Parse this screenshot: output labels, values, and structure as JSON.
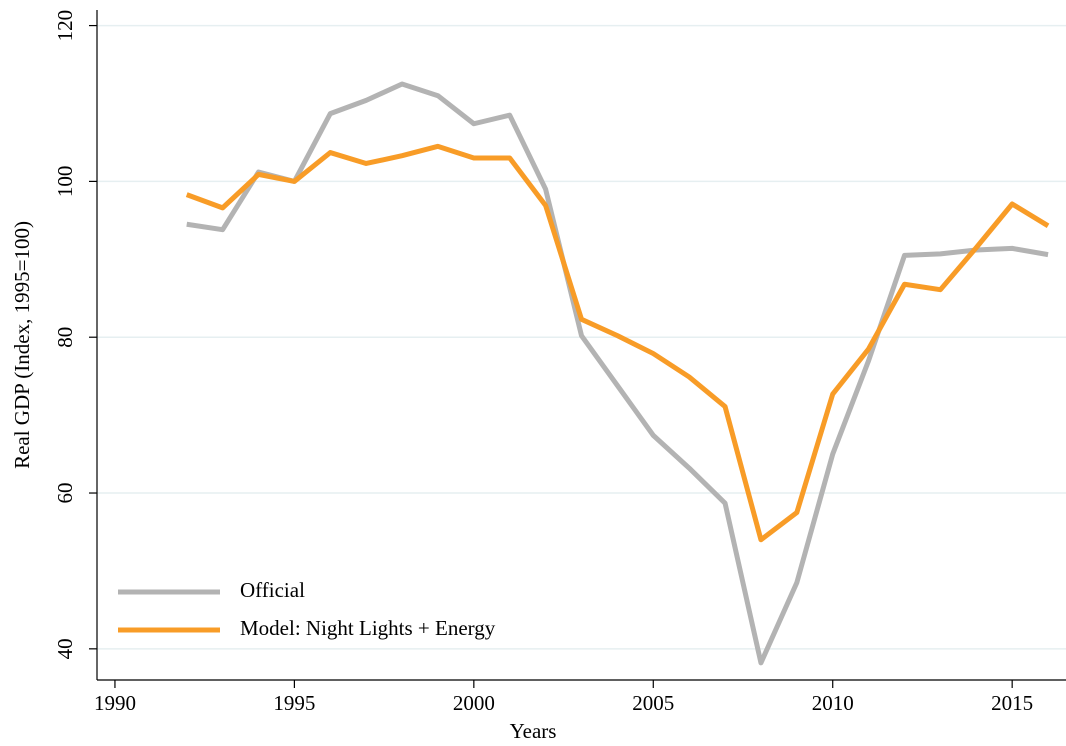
{
  "chart_data": {
    "type": "line",
    "x_label": "Years",
    "y_label": "Real GDP (Index, 1995=100)",
    "x": [
      1992,
      1993,
      1994,
      1995,
      1996,
      1997,
      1998,
      1999,
      2000,
      2001,
      2002,
      2003,
      2004,
      2005,
      2006,
      2007,
      2008,
      2009,
      2010,
      2011,
      2012,
      2013,
      2014,
      2015,
      2016
    ],
    "series": [
      {
        "name": "Official",
        "color": "#b3b3b3",
        "values": [
          94.5,
          93.8,
          101.2,
          100,
          108.7,
          110.4,
          112.5,
          111,
          107.4,
          108.5,
          99,
          80.2,
          73.8,
          67.4,
          63.2,
          58.7,
          38.2,
          48.5,
          65,
          77,
          90.5,
          90.7,
          91.2,
          91.4,
          90.6
        ]
      },
      {
        "name": "Model: Night Lights + Energy",
        "color": "#f89c27",
        "values": [
          98.3,
          96.6,
          100.9,
          100,
          103.7,
          102.3,
          103.3,
          104.5,
          103,
          103,
          96.9,
          82.3,
          80.2,
          77.9,
          74.9,
          71.1,
          54,
          57.5,
          72.7,
          78.5,
          86.8,
          86.1,
          91.5,
          97.1,
          94.3
        ]
      }
    ],
    "xlim": [
      1989.5,
      2016.5
    ],
    "xticks": [
      1990,
      1995,
      2000,
      2005,
      2010,
      2015
    ],
    "ylim": [
      36,
      122
    ],
    "yticks": [
      40,
      60,
      80,
      100,
      120
    ],
    "grid": true,
    "legend": "lower left"
  }
}
